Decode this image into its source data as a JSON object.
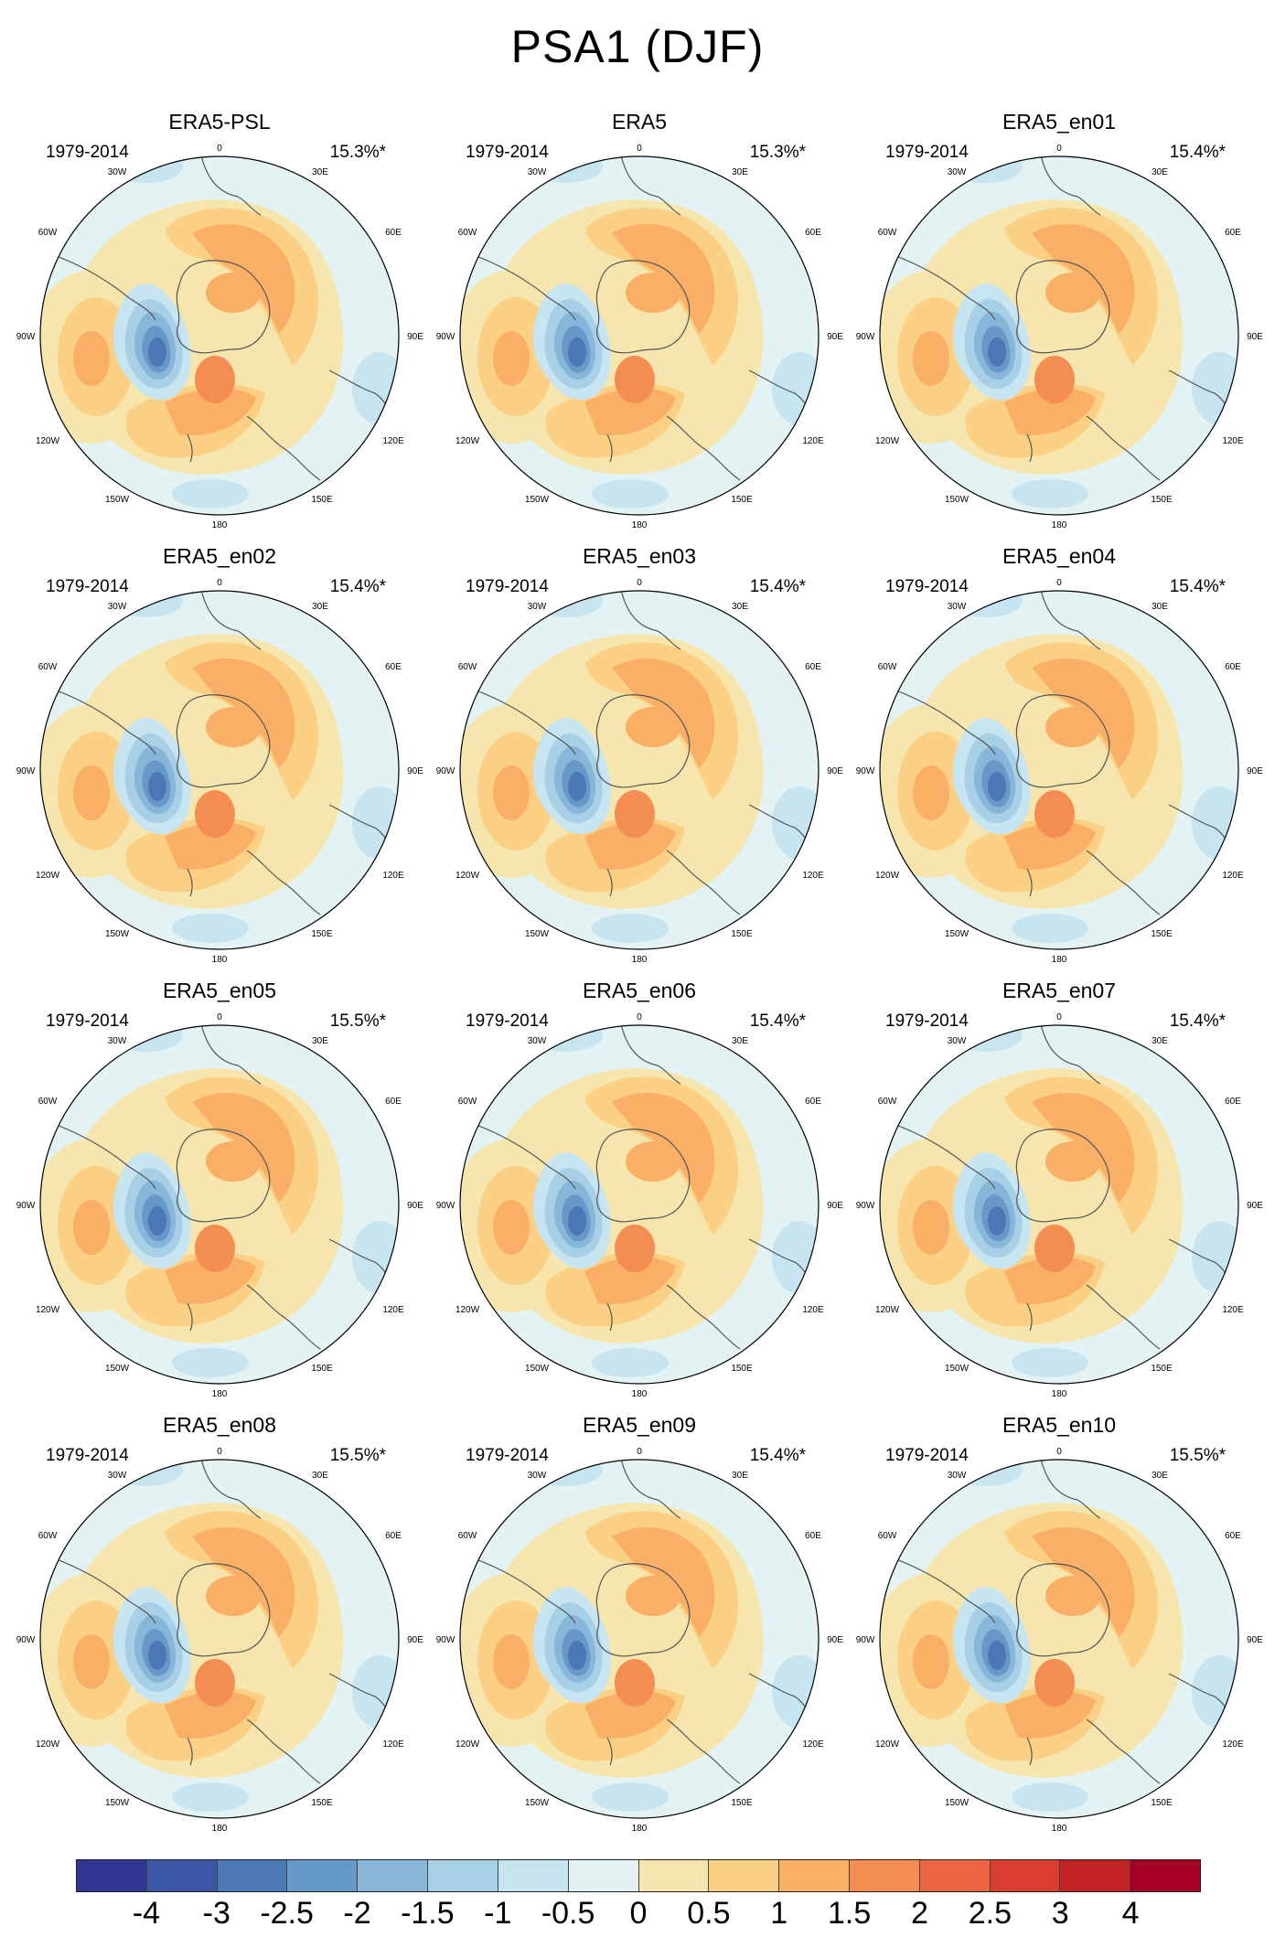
{
  "title": "PSA1 (DJF)",
  "panels": [
    {
      "name": "ERA5-PSL",
      "period": "1979-2014",
      "variance": "15.3%*"
    },
    {
      "name": "ERA5",
      "period": "1979-2014",
      "variance": "15.3%*"
    },
    {
      "name": "ERA5_en01",
      "period": "1979-2014",
      "variance": "15.4%*"
    },
    {
      "name": "ERA5_en02",
      "period": "1979-2014",
      "variance": "15.4%*"
    },
    {
      "name": "ERA5_en03",
      "period": "1979-2014",
      "variance": "15.4%*"
    },
    {
      "name": "ERA5_en04",
      "period": "1979-2014",
      "variance": "15.4%*"
    },
    {
      "name": "ERA5_en05",
      "period": "1979-2014",
      "variance": "15.5%*"
    },
    {
      "name": "ERA5_en06",
      "period": "1979-2014",
      "variance": "15.4%*"
    },
    {
      "name": "ERA5_en07",
      "period": "1979-2014",
      "variance": "15.4%*"
    },
    {
      "name": "ERA5_en08",
      "period": "1979-2014",
      "variance": "15.5%*"
    },
    {
      "name": "ERA5_en09",
      "period": "1979-2014",
      "variance": "15.4%*"
    },
    {
      "name": "ERA5_en10",
      "period": "1979-2014",
      "variance": "15.5%*"
    }
  ],
  "longitude_labels": [
    "0",
    "30E",
    "60E",
    "90E",
    "120E",
    "150E",
    "180",
    "150W",
    "120W",
    "90W",
    "60W",
    "30W"
  ],
  "colorbar": {
    "colors": [
      "#313695",
      "#3a56a4",
      "#4a78b5",
      "#6699c8",
      "#87b6d9",
      "#a7d0e6",
      "#c6e5f0",
      "#e3f3f3",
      "#f6e6ad",
      "#fbcf84",
      "#f9b066",
      "#f48d52",
      "#ec6543",
      "#dc3c30",
      "#c42127",
      "#a50026"
    ],
    "labels": [
      "-4",
      "-3",
      "-2.5",
      "-2",
      "-1.5",
      "-1",
      "-0.5",
      "0",
      "0.5",
      "1",
      "1.5",
      "2",
      "2.5",
      "3",
      "4"
    ]
  },
  "pattern_colors": {
    "ocean": "#e3f3f3",
    "pos1": "#f6e6ad",
    "pos2": "#fbcf84",
    "pos3": "#f9b066",
    "pos4": "#f48d52",
    "neg1": "#c6e5f0",
    "neg2": "#a7d0e6",
    "neg3": "#87b6d9",
    "neg4": "#6699c8",
    "neg5": "#4a78b5",
    "coast": "#555555"
  }
}
